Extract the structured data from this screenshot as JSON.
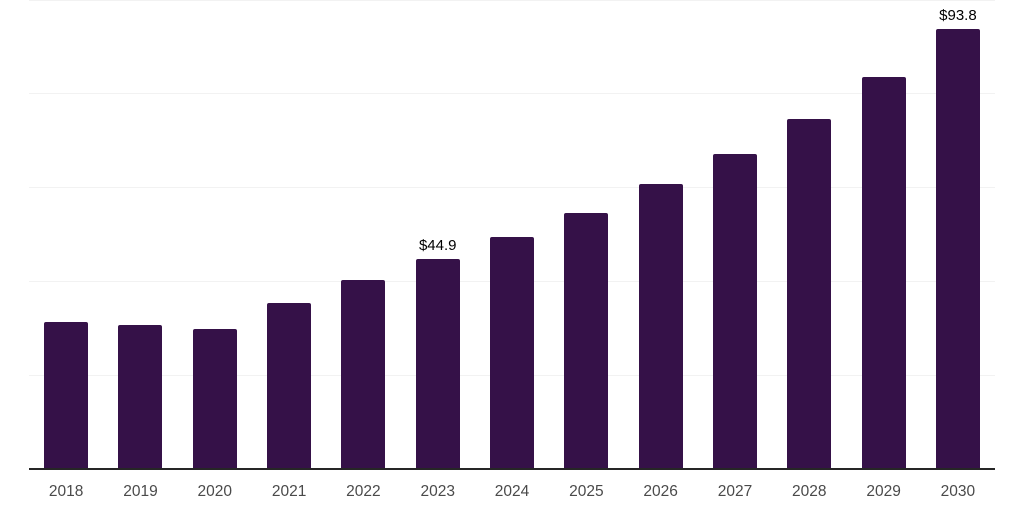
{
  "chart_data": {
    "type": "bar",
    "title": "",
    "xlabel": "",
    "ylabel": "",
    "categories": [
      "2018",
      "2019",
      "2020",
      "2021",
      "2022",
      "2023",
      "2024",
      "2025",
      "2026",
      "2027",
      "2028",
      "2029",
      "2030"
    ],
    "values": [
      31.4,
      30.9,
      29.9,
      35.5,
      40.4,
      44.9,
      49.6,
      54.7,
      60.9,
      67.2,
      74.7,
      83.6,
      93.8
    ],
    "data_labels": {
      "2023": "$44.9",
      "2030": "$93.8"
    },
    "ylim": [
      0,
      100
    ],
    "gridline_values": [
      20,
      40,
      60,
      80,
      100
    ],
    "grid": "horizontal only, no y-axis tick labels",
    "legend": "none",
    "colors": {
      "bar": "#351148",
      "gridline": "#f2f2f2",
      "axis_line": "#262626",
      "tick_label": "#4a4a4a",
      "data_label": "#000000",
      "background": "#ffffff"
    }
  }
}
